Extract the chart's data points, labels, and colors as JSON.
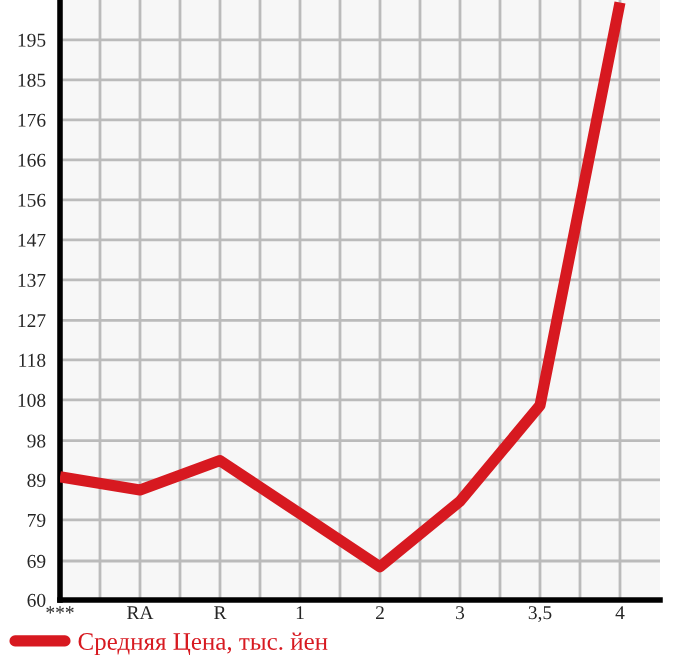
{
  "chart_data": {
    "type": "line",
    "categories": [
      "***",
      "RA",
      "R",
      "1",
      "2",
      "3",
      "3,5",
      "4"
    ],
    "series": [
      {
        "name": "Средняя Цена, тыс. йен",
        "color": "#d71920",
        "values": [
          89.7,
          86.5,
          93.6,
          80.8,
          68.0,
          83.8,
          106.9,
          204
        ]
      }
    ],
    "ylim": [
      60,
      204.6
    ],
    "yticks": [
      60,
      {
        "value": 69.4,
        "label": "69"
      },
      {
        "value": 79.29,
        "label": "79"
      },
      {
        "value": 88.93,
        "label": "89"
      },
      {
        "value": 98.4,
        "label": "98"
      },
      {
        "value": 108.21,
        "label": "108"
      },
      {
        "value": 117.86,
        "label": "118"
      },
      {
        "value": 127.4,
        "label": "127"
      },
      {
        "value": 137.14,
        "label": "137"
      },
      {
        "value": 146.79,
        "label": "147"
      },
      {
        "value": 156.43,
        "label": "156"
      },
      {
        "value": 166.07,
        "label": "166"
      },
      {
        "value": 175.71,
        "label": "176"
      },
      {
        "value": 185.36,
        "label": "185"
      },
      195
    ],
    "grid": true,
    "legend": "bottom left",
    "marker": "none",
    "line_style": "solid"
  }
}
